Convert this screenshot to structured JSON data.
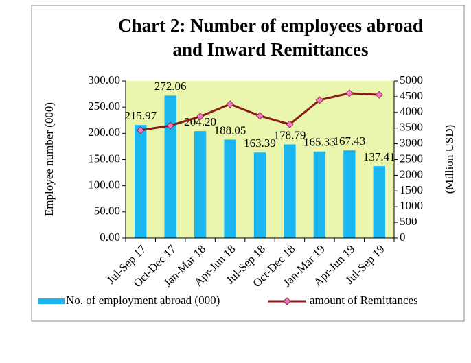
{
  "chart_data": {
    "type": "bar_line",
    "title": [
      "Chart 2: Number of employees abroad",
      "and Inward Remittances"
    ],
    "y_label": "Employee number  (000)",
    "y2_label": "(Million USD)",
    "categories": [
      "Jul-Sep 17",
      "Oct-Dec 17",
      "Jan-Mar 18",
      "Apr-Jun 18",
      "Jul-Sep 18",
      "Oct-Dec 18",
      "Jan-Mar 19",
      "Apr-Jun 19",
      "Jul-Sep 19"
    ],
    "series": [
      {
        "name": "No. of employment abroad (000)",
        "type": "bar",
        "color": "#1ab6f0",
        "values": [
          215.97,
          272.06,
          204.2,
          188.05,
          163.39,
          178.79,
          165.33,
          167.43,
          137.41
        ],
        "value_labels": [
          "215.97",
          "272.06",
          "204.20",
          "188.05",
          "163.39",
          "178.79",
          "165.33",
          "167.43",
          "137.41"
        ]
      },
      {
        "name": "amount of Remittances",
        "type": "line",
        "axis": "y2",
        "color": "#8b1a1a",
        "marker_color": "#f47ad0",
        "values": [
          3430,
          3580,
          3870,
          4260,
          3890,
          3620,
          4390,
          4610,
          4560
        ]
      }
    ],
    "ylim": [
      0,
      300
    ],
    "yticks": [
      {
        "value": 0,
        "label": "0.00"
      },
      {
        "value": 50,
        "label": "50.00"
      },
      {
        "value": 100,
        "label": "100.00"
      },
      {
        "value": 150,
        "label": "150.00"
      },
      {
        "value": 200,
        "label": "200.00"
      },
      {
        "value": 250,
        "label": "250.00"
      },
      {
        "value": 300,
        "label": "300.00"
      }
    ],
    "y2lim": [
      0,
      5000
    ],
    "y2ticks": [
      0,
      500,
      1000,
      1500,
      2000,
      2500,
      3000,
      3500,
      4000,
      4500,
      5000
    ],
    "plot_background": "#eaf6ae",
    "legend": "bottom"
  }
}
